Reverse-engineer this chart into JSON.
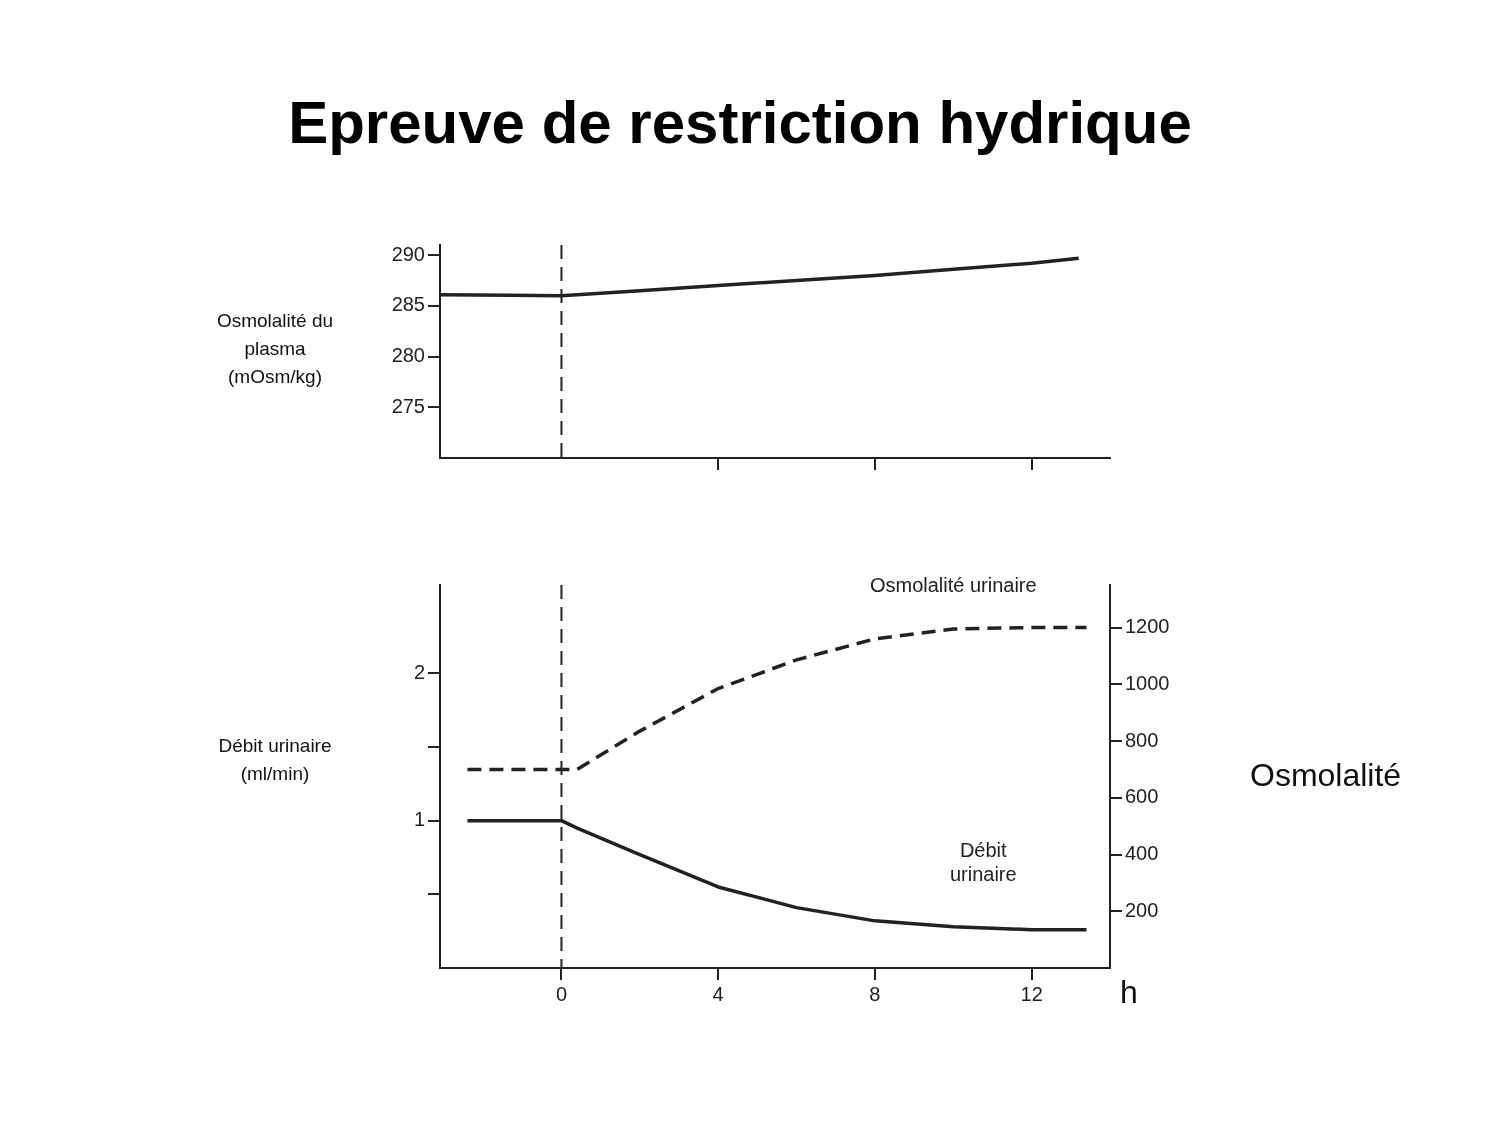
{
  "chart_data": [
    {
      "type": "line",
      "title": "Epreuve de restriction hydrique",
      "ylabel": "Osmolalité du plasma (mOsm/kg)",
      "x": [
        -3.1,
        0,
        2,
        4,
        6,
        8,
        10,
        12,
        13.2
      ],
      "series": [
        {
          "color": "#222222",
          "values": [
            286.1,
            286,
            286.5,
            287,
            287.5,
            288,
            288.6,
            289.2,
            289.7
          ]
        }
      ],
      "xlim": [
        -3.1,
        14
      ],
      "xticks": [
        {
          "value": 4,
          "label": null
        },
        {
          "value": 8,
          "label": null
        },
        {
          "value": 12,
          "label": null
        }
      ],
      "ylim": [
        270,
        291
      ],
      "yticks": [
        275,
        280,
        285,
        290
      ],
      "tick_labels": "y",
      "marker": "none",
      "line_style": "solid",
      "ref_lines": [
        {
          "axis": "x",
          "value": 0,
          "line_style": "dashed"
        }
      ]
    },
    {
      "type": "line",
      "xlabel": "h",
      "ylabel": "Débit urinaire (ml/min)",
      "y2label": "Osmolalité",
      "x": [
        -2.4,
        0,
        0.4,
        2,
        4,
        6,
        8,
        10,
        12,
        13.4
      ],
      "series": [
        {
          "name": "Osmolalité urinaire",
          "color": "#222222",
          "axis": "y2",
          "line_style": "dashed",
          "values": [
            700,
            700,
            700,
            835,
            985,
            1086,
            1160,
            1195,
            1200,
            1200
          ]
        },
        {
          "name": "Débit urinaire",
          "color": "#222222",
          "line_style": "solid",
          "values": [
            1,
            1,
            0.95,
            0.77,
            0.55,
            0.41,
            0.32,
            0.28,
            0.26,
            0.26
          ]
        }
      ],
      "xlim": [
        -3.1,
        14
      ],
      "xticks": [
        0,
        4,
        8,
        12
      ],
      "ylim": [
        0,
        2.6
      ],
      "yticks": [
        {
          "value": 0.5,
          "label": null
        },
        1,
        {
          "value": 1.5,
          "label": null
        },
        2
      ],
      "y2lim": [
        0,
        1350
      ],
      "y2ticks": [
        200,
        400,
        600,
        800,
        1000,
        1200
      ],
      "marker": "none",
      "ref_lines": [
        {
          "axis": "x",
          "value": 0,
          "line_style": "dashed"
        }
      ]
    }
  ]
}
